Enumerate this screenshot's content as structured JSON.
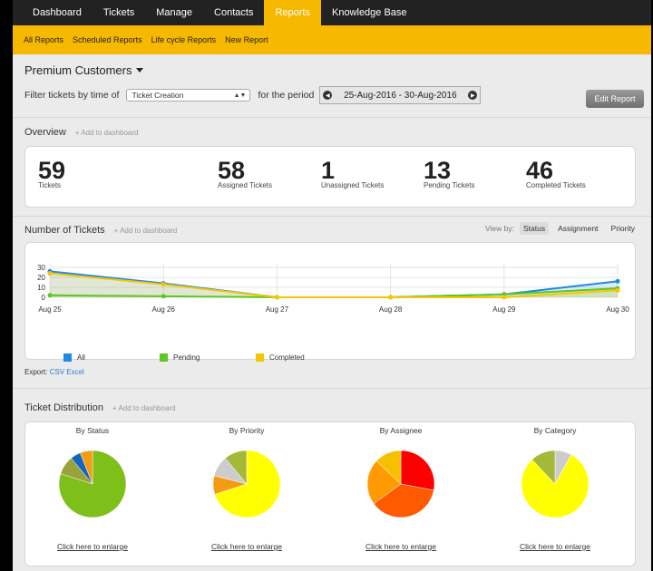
{
  "nav": {
    "tabs": [
      {
        "label": "Dashboard",
        "active": false
      },
      {
        "label": "Tickets",
        "active": false
      },
      {
        "label": "Manage",
        "active": false
      },
      {
        "label": "Contacts",
        "active": false
      },
      {
        "label": "Reports",
        "active": true
      },
      {
        "label": "Knowledge Base",
        "active": false
      }
    ],
    "sub_links": [
      "All Reports",
      "Scheduled Reports",
      "Life cycle Reports",
      "New Report"
    ]
  },
  "header": {
    "title": "Premium Customers",
    "filter_label": "Filter tickets by time of",
    "filter_value": "Ticket Creation",
    "period_label": "for the period",
    "date_range": "25-Aug-2016 - 30-Aug-2016",
    "edit_button": "Edit Report"
  },
  "overview": {
    "title": "Overview",
    "add_link": "+ Add to dashboard",
    "stats": [
      {
        "value": "59",
        "label": "Tickets"
      },
      {
        "value": "58",
        "label": "Assigned Tickets"
      },
      {
        "value": "1",
        "label": "Unassigned Tickets"
      },
      {
        "value": "13",
        "label": "Pending Tickets"
      },
      {
        "value": "46",
        "label": "Completed Tickets"
      }
    ]
  },
  "tickets_chart": {
    "title": "Number of Tickets",
    "add_link": "+ Add to dashboard",
    "view_by_label": "View by:",
    "view_by_options": [
      {
        "label": "Status",
        "active": true
      },
      {
        "label": "Assignment",
        "active": false
      },
      {
        "label": "Priority",
        "active": false
      }
    ],
    "export_label": "Export:",
    "export_links": [
      "CSV",
      "Excel"
    ]
  },
  "chart_data": {
    "type": "area",
    "x": [
      "Aug 25",
      "Aug 26",
      "Aug 27",
      "Aug 28",
      "Aug 29",
      "Aug 30"
    ],
    "y_ticks": [
      "30",
      "20",
      "10",
      "0"
    ],
    "ylim": [
      0,
      30
    ],
    "grid": true,
    "legend_position": "bottom",
    "series": [
      {
        "name": "All",
        "color": "#1e88e5",
        "values": [
          26,
          14,
          0,
          0,
          3,
          16
        ]
      },
      {
        "name": "Pending",
        "color": "#5cc820",
        "values": [
          2,
          1,
          0,
          0,
          3,
          9
        ]
      },
      {
        "name": "Completed",
        "color": "#f7c600",
        "values": [
          24,
          13,
          0,
          0,
          0,
          7
        ]
      }
    ]
  },
  "distribution": {
    "title": "Ticket Distribution",
    "add_link": "+ Add to dashboard",
    "enlarge_label": "Click here to enlarge",
    "pies": [
      {
        "title": "By Status",
        "slices": [
          {
            "value": 0.8,
            "color": "#7fbf1a"
          },
          {
            "value": 0.09,
            "color": "#9aa23a"
          },
          {
            "value": 0.05,
            "color": "#1565c0"
          },
          {
            "value": 0.06,
            "color": "#f39c12"
          }
        ]
      },
      {
        "title": "By Priority",
        "slices": [
          {
            "value": 0.7,
            "color": "#ffff00"
          },
          {
            "value": 0.09,
            "color": "#f39c12"
          },
          {
            "value": 0.1,
            "color": "#cccccc"
          },
          {
            "value": 0.11,
            "color": "#a5b83a"
          }
        ]
      },
      {
        "title": "By Assignee",
        "slices": [
          {
            "value": 0.28,
            "color": "#ff0000"
          },
          {
            "value": 0.37,
            "color": "#ff5a00"
          },
          {
            "value": 0.22,
            "color": "#ff9a00"
          },
          {
            "value": 0.13,
            "color": "#f6c000"
          }
        ]
      },
      {
        "title": "By Category",
        "slices": [
          {
            "value": 0.08,
            "color": "#cccccc"
          },
          {
            "value": 0.8,
            "color": "#ffff00"
          },
          {
            "value": 0.12,
            "color": "#a5b83a"
          }
        ]
      }
    ]
  }
}
